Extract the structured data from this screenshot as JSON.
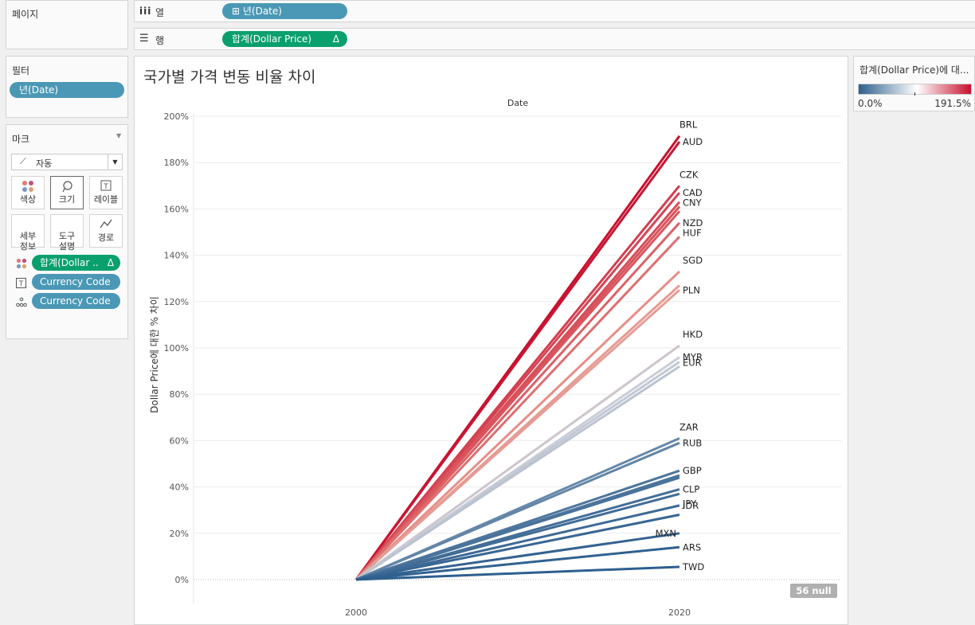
{
  "pages_card": {
    "title": "페이지"
  },
  "columns_shelf": {
    "label": "열",
    "pill": "⊞ 년(Date)"
  },
  "rows_shelf": {
    "label": "행",
    "pill": "합계(Dollar Price)",
    "pill_delta": "Δ"
  },
  "filters_card": {
    "title": "필터",
    "pill": "년(Date)"
  },
  "marks_card": {
    "title": "마크",
    "mark_type": "자동",
    "buttons": [
      {
        "label": "색상"
      },
      {
        "label": "크기"
      },
      {
        "label": "레이블"
      },
      {
        "label": "세부\n정보"
      },
      {
        "label": "도구\n설명"
      },
      {
        "label": "경로"
      }
    ],
    "fields": [
      {
        "label": "합계(Dollar ..",
        "delta": "Δ"
      },
      {
        "label": "Currency Code"
      },
      {
        "label": "Currency Code"
      }
    ]
  },
  "legend": {
    "title": "합계(Dollar Price)에 대...",
    "min_label": "0.0%",
    "max_label": "191.5%",
    "colors": [
      "#2e5f8e",
      "#ffffff",
      "#c8102e"
    ]
  },
  "null_badge": "56 null",
  "chart_data": {
    "type": "line",
    "title": "국가별 가격 변동 비율 차이",
    "xlabel": "Date",
    "ylabel": "Dollar Price에 대한 % 차이",
    "x": [
      "2000",
      "2020"
    ],
    "ylim": [
      0,
      200
    ],
    "yticks": [
      "0%",
      "20%",
      "40%",
      "60%",
      "80%",
      "100%",
      "120%",
      "140%",
      "160%",
      "180%",
      "200%"
    ],
    "series": [
      {
        "name": "BRL",
        "values": [
          0,
          191.5
        ]
      },
      {
        "name": "AUD",
        "values": [
          0,
          189
        ]
      },
      {
        "name": "CZK",
        "values": [
          0,
          170
        ]
      },
      {
        "name": "CAD",
        "values": [
          0,
          167
        ]
      },
      {
        "name": "",
        "values": [
          0,
          163
        ]
      },
      {
        "name": "CNY",
        "values": [
          0,
          161
        ]
      },
      {
        "name": "",
        "values": [
          0,
          159
        ]
      },
      {
        "name": "NZD",
        "values": [
          0,
          154
        ]
      },
      {
        "name": "HUF",
        "values": [
          0,
          148
        ]
      },
      {
        "name": "SGD",
        "values": [
          0,
          133
        ]
      },
      {
        "name": "",
        "values": [
          0,
          127
        ]
      },
      {
        "name": "PLN",
        "values": [
          0,
          125
        ]
      },
      {
        "name": "HKD",
        "values": [
          0,
          101
        ]
      },
      {
        "name": "MYR",
        "values": [
          0,
          96
        ]
      },
      {
        "name": "",
        "values": [
          0,
          94
        ]
      },
      {
        "name": "EUR",
        "values": [
          0,
          92
        ]
      },
      {
        "name": "ZAR",
        "values": [
          0,
          61
        ]
      },
      {
        "name": "RUB",
        "values": [
          0,
          59
        ]
      },
      {
        "name": "GBP",
        "values": [
          0,
          47
        ]
      },
      {
        "name": "",
        "values": [
          0,
          45
        ]
      },
      {
        "name": "",
        "values": [
          0,
          44
        ]
      },
      {
        "name": "CLP",
        "values": [
          0,
          39
        ]
      },
      {
        "name": "",
        "values": [
          0,
          37
        ]
      },
      {
        "name": "IDR",
        "values": [
          0,
          32
        ]
      },
      {
        "name": "JPY",
        "values": [
          0,
          28
        ]
      },
      {
        "name": "MXN",
        "values": [
          0,
          20
        ]
      },
      {
        "name": "ARS",
        "values": [
          0,
          14
        ]
      },
      {
        "name": "TWD",
        "values": [
          0,
          5.5
        ]
      }
    ],
    "grid": true,
    "legend": "none"
  }
}
